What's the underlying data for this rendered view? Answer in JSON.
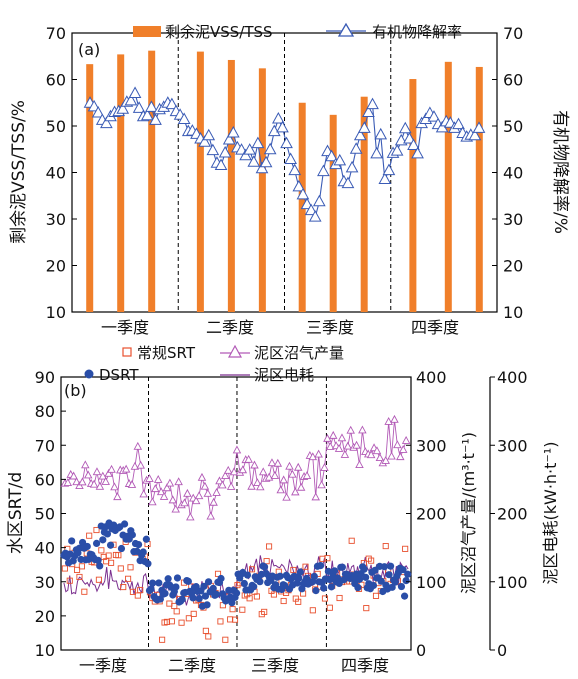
{
  "colors": {
    "bar": "#f07f2a",
    "triangle": "#3a5bb5",
    "square": "#e8502e",
    "purple": "#b25ab6",
    "dsrt": "#2a4ea8",
    "energy": "#7a2e8e"
  },
  "chart_data": [
    {
      "type": "bar+line",
      "panel_label": "(a)",
      "ylabel_left": "剩余泥VSS/TSS/%",
      "ylabel_right": "有机物降解率/%",
      "ylim": [
        10,
        70
      ],
      "yticks": [
        10,
        20,
        30,
        40,
        50,
        60,
        70
      ],
      "x_range": [
        0,
        48
      ],
      "quarter_labels": [
        "一季度",
        "二季度",
        "三季度",
        "四季度"
      ],
      "quarter_dividers": [
        12,
        24,
        36
      ],
      "legend": {
        "bar": "剩余泥VSS/TSS",
        "line": "有机物降解率"
      },
      "bars": [
        {
          "x": 2,
          "value": 63.3
        },
        {
          "x": 5.5,
          "value": 65.4
        },
        {
          "x": 9,
          "value": 66.2
        },
        {
          "x": 14.5,
          "value": 66.0
        },
        {
          "x": 18,
          "value": 64.2
        },
        {
          "x": 21.5,
          "value": 62.4
        },
        {
          "x": 26,
          "value": 55.0
        },
        {
          "x": 29.5,
          "value": 52.4
        },
        {
          "x": 33,
          "value": 56.3
        },
        {
          "x": 38.5,
          "value": 60.1
        },
        {
          "x": 42.5,
          "value": 63.8
        },
        {
          "x": 46,
          "value": 62.7
        }
      ],
      "series": [
        {
          "name": "有机物降解率",
          "y": [
            54.9,
            54.1,
            52.8,
            51.2,
            50.5,
            52.0,
            52.9,
            53.1,
            53.6,
            55.1,
            55.4,
            57.0,
            53.8,
            52.0,
            52.2,
            54.0,
            51.2,
            53.5,
            54.0,
            54.9,
            54.6,
            53.1,
            52.3,
            51.4,
            48.8,
            48.9,
            48.2,
            47.2,
            46.5,
            47.9,
            44.7,
            42.0,
            41.5,
            44.2,
            47.0,
            48.5,
            45.3,
            44.8,
            43.6,
            44.8,
            42.2,
            46.2,
            40.8,
            42.1,
            44.9,
            48.8,
            51.5,
            49.6,
            46.2,
            42.8,
            40.4,
            36.9,
            35.2,
            33.1,
            31.8,
            30.4,
            33.7,
            40.2,
            44.5,
            43.4,
            41.7,
            42.5,
            38.0,
            37.6,
            41.0,
            45.0,
            47.9,
            49.5,
            52.9,
            54.6,
            44.0,
            48.1,
            38.5,
            40.4,
            44.1,
            44.6,
            46.8,
            49.4,
            47.2,
            45.8,
            44.0,
            50.5,
            51.4,
            52.7,
            51.9,
            50.3,
            49.6,
            50.9,
            50.6,
            49.5,
            50.3,
            48.4,
            47.6,
            48.0,
            47.9,
            49.5
          ]
        }
      ]
    },
    {
      "type": "scatter+line",
      "panel_label": "(b)",
      "ylabel_left": "水区SRT/d",
      "ylabel_right1": "泥区沼气产量/(m³·t⁻¹)",
      "ylabel_right2": "泥区电耗(kW·h·t⁻¹)",
      "ylim_left": [
        10,
        90
      ],
      "yticks_left": [
        10,
        20,
        30,
        40,
        50,
        60,
        70,
        80,
        90
      ],
      "ylim_right": [
        0,
        400
      ],
      "yticks_right": [
        0,
        100,
        200,
        300,
        400
      ],
      "x_range": [
        0,
        360
      ],
      "quarter_labels": [
        "一季度",
        "二季度",
        "三季度",
        "四季度"
      ],
      "quarter_dividers": [
        90,
        181,
        273
      ],
      "legend": {
        "conventional": "常规SRT",
        "dsrt": "DSRT",
        "biogas": "泥区沼气产量",
        "energy": "泥区电耗"
      },
      "series_summary": [
        {
          "name": "常规SRT",
          "axis": "left",
          "quarter_means": [
            36,
            22,
            30,
            32
          ]
        },
        {
          "name": "DSRT",
          "axis": "left",
          "quarter_means": [
            39,
            27,
            31,
            31
          ]
        },
        {
          "name": "泥区沼气产量",
          "axis": "right",
          "quarter_means": [
            255,
            235,
            260,
            300
          ]
        },
        {
          "name": "泥区电耗",
          "axis": "right",
          "quarter_means": [
            100,
            85,
            120,
            115
          ]
        }
      ]
    }
  ]
}
